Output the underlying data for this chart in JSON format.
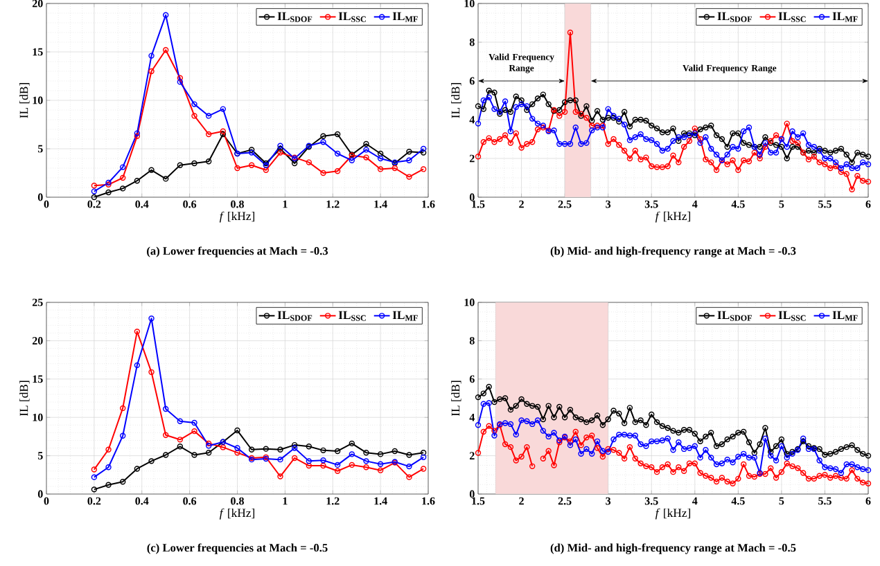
{
  "chart_data": [
    {
      "type": "line",
      "title": "(a)  Lower frequencies at Mach = -0.3",
      "xlabel": "*f* [kHz]",
      "ylabel": "IL [dB]",
      "xlim": [
        0,
        1.6
      ],
      "ylim": [
        0,
        20
      ],
      "xticks": [
        0,
        0.2,
        0.4,
        0.6,
        0.8,
        1,
        1.2,
        1.4,
        1.6
      ],
      "yticks": [
        0,
        5,
        10,
        15,
        20
      ],
      "grid": true,
      "legend": "top right",
      "marker": "circle",
      "line_style": "solid",
      "x": [
        0.2,
        0.26,
        0.32,
        0.38,
        0.44,
        0.5,
        0.56,
        0.62,
        0.68,
        0.74,
        0.8,
        0.86,
        0.92,
        0.98,
        1.04,
        1.1,
        1.16,
        1.22,
        1.28,
        1.34,
        1.4,
        1.46,
        1.52,
        1.58
      ],
      "series": [
        {
          "name": "IL$_{SDOF}$",
          "color": "#000000",
          "values": [
            0,
            0.5,
            0.9,
            1.7,
            2.8,
            1.9,
            3.3,
            3.5,
            3.7,
            6.5,
            4.5,
            4.9,
            3.5,
            5.0,
            3.5,
            5.2,
            6.3,
            6.5,
            4.4,
            5.5,
            4.5,
            3.5,
            4.7,
            4.6
          ]
        },
        {
          "name": "IL$_{SSC}$",
          "color": "#ff0000",
          "values": [
            1.2,
            1.3,
            2.0,
            6.3,
            13.0,
            15.2,
            12.3,
            8.4,
            6.5,
            6.8,
            3.0,
            3.3,
            2.8,
            4.6,
            4.1,
            3.6,
            2.5,
            2.7,
            4.3,
            4.1,
            2.9,
            3.0,
            2.1,
            2.9
          ]
        },
        {
          "name": "IL$_{MF}$",
          "color": "#0000ff",
          "values": [
            0.6,
            1.5,
            3.1,
            6.6,
            14.6,
            18.8,
            11.9,
            9.6,
            8.4,
            9.1,
            4.5,
            4.6,
            3.3,
            5.3,
            4.0,
            5.3,
            5.7,
            4.5,
            3.8,
            4.9,
            4.0,
            3.6,
            3.8,
            5.0
          ]
        }
      ]
    },
    {
      "type": "line",
      "title": "(b)  Mid- and high-frequency range at Mach = -0.3",
      "xlabel": "*f* [kHz]",
      "ylabel": "IL [dB]",
      "xlim": [
        1.5,
        6
      ],
      "ylim": [
        0,
        10
      ],
      "xticks": [
        1.5,
        2,
        2.5,
        3,
        3.5,
        4,
        4.5,
        5,
        5.5,
        6
      ],
      "yticks": [
        0,
        2,
        4,
        6,
        8,
        10
      ],
      "grid": true,
      "legend": "top right",
      "marker": "circle",
      "line_style": "solid",
      "bands": [
        {
          "axis": "x",
          "from": 2.5,
          "to": 2.8,
          "color": "#f9d9d9"
        }
      ],
      "annotations": [
        "Valid Frequency Range",
        "Valid Frequency Range"
      ],
      "x": [
        1.5,
        1.5625,
        1.625,
        1.6875,
        1.75,
        1.8125,
        1.875,
        1.9375,
        2,
        2.0625,
        2.125,
        2.1875,
        2.25,
        2.3125,
        2.375,
        2.4375,
        2.5,
        2.5625,
        2.625,
        2.6875,
        2.75,
        2.8125,
        2.875,
        2.9375,
        3,
        3.0625,
        3.125,
        3.1875,
        3.25,
        3.3125,
        3.375,
        3.4375,
        3.5,
        3.5625,
        3.625,
        3.6875,
        3.75,
        3.8125,
        3.875,
        3.9375,
        4,
        4.0625,
        4.125,
        4.1875,
        4.25,
        4.3125,
        4.375,
        4.4375,
        4.5,
        4.5625,
        4.625,
        4.6875,
        4.75,
        4.8125,
        4.875,
        4.9375,
        5,
        5.0625,
        5.125,
        5.1875,
        5.25,
        5.3125,
        5.375,
        5.4375,
        5.5,
        5.5625,
        5.625,
        5.6875,
        5.75,
        5.8125,
        5.875,
        5.9375,
        6
      ],
      "series": [
        {
          "name": "IL$_{SDOF}$",
          "color": "#000000",
          "values": [
            4.7,
            4.55,
            5.5,
            5.4,
            4.3,
            4.5,
            4.4,
            5.2,
            5.0,
            4.5,
            4.8,
            5.1,
            5.3,
            4.8,
            4.45,
            4.5,
            4.9,
            5.0,
            5.0,
            4.2,
            4.7,
            3.95,
            4.45,
            4.0,
            4.1,
            4.1,
            3.9,
            4.4,
            3.65,
            4.0,
            4.0,
            3.95,
            3.7,
            3.55,
            3.35,
            3.35,
            3.55,
            2.9,
            3.3,
            3.3,
            3.2,
            3.5,
            3.6,
            3.7,
            3.2,
            3.0,
            2.6,
            3.3,
            3.3,
            2.8,
            2.7,
            2.6,
            2.6,
            3.1,
            2.8,
            2.7,
            2.6,
            2.0,
            2.6,
            2.6,
            2.3,
            2.4,
            2.3,
            2.5,
            2.4,
            2.3,
            2.4,
            2.5,
            2.2,
            1.8,
            2.3,
            2.2,
            2.1
          ]
        },
        {
          "name": "IL$_{SSC}$",
          "color": "#ff0000",
          "values": [
            2.1,
            2.85,
            3.05,
            2.85,
            3.0,
            3.2,
            2.8,
            3.3,
            2.55,
            2.75,
            2.85,
            3.5,
            3.6,
            3.45,
            4.5,
            4.2,
            4.4,
            8.5,
            4.4,
            4.3,
            4.1,
            3.7,
            3.7,
            3.7,
            2.75,
            3.0,
            2.7,
            2.4,
            2.0,
            2.4,
            1.95,
            2.05,
            1.6,
            1.55,
            1.55,
            1.6,
            2.15,
            1.8,
            2.6,
            2.9,
            3.55,
            3.0,
            1.95,
            1.8,
            1.4,
            1.9,
            1.7,
            1.9,
            1.4,
            1.9,
            1.85,
            2.3,
            2.0,
            2.6,
            2.9,
            3.2,
            3.0,
            3.8,
            2.9,
            2.8,
            2.3,
            1.95,
            2.1,
            1.8,
            1.7,
            1.5,
            1.6,
            1.3,
            1.2,
            0.4,
            1.1,
            0.85,
            0.8
          ]
        },
        {
          "name": "IL$_{MF}$",
          "color": "#0000ff",
          "values": [
            3.8,
            5.0,
            5.15,
            4.55,
            4.4,
            4.95,
            3.4,
            4.65,
            4.8,
            4.7,
            4.05,
            3.8,
            3.7,
            3.4,
            3.45,
            2.75,
            2.75,
            2.75,
            3.6,
            2.75,
            2.8,
            3.45,
            3.6,
            3.6,
            4.55,
            4.2,
            4.05,
            3.75,
            2.95,
            3.1,
            3.25,
            3.0,
            2.95,
            2.75,
            2.4,
            2.5,
            2.9,
            3.1,
            3.1,
            3.2,
            3.3,
            2.8,
            3.1,
            2.5,
            2.2,
            1.9,
            2.2,
            2.6,
            2.5,
            3.4,
            3.6,
            2.6,
            2.2,
            2.8,
            2.3,
            2.3,
            3.0,
            2.6,
            3.4,
            3.1,
            3.3,
            2.7,
            2.6,
            2.4,
            2.0,
            2.0,
            1.8,
            1.5,
            1.7,
            1.5,
            1.5,
            1.8,
            1.7
          ]
        }
      ]
    },
    {
      "type": "line",
      "title": "(c)  Lower frequencies at Mach = -0.5",
      "xlabel": "*f* [kHz]",
      "ylabel": "IL [dB]",
      "xlim": [
        0,
        1.6
      ],
      "ylim": [
        0,
        25
      ],
      "xticks": [
        0,
        0.2,
        0.4,
        0.6,
        0.8,
        1,
        1.2,
        1.4,
        1.6
      ],
      "yticks": [
        0,
        5,
        10,
        15,
        20,
        25
      ],
      "grid": true,
      "legend": "top right",
      "marker": "circle",
      "line_style": "solid",
      "x": [
        0.2,
        0.26,
        0.32,
        0.38,
        0.44,
        0.5,
        0.56,
        0.62,
        0.68,
        0.74,
        0.8,
        0.86,
        0.92,
        0.98,
        1.04,
        1.1,
        1.16,
        1.22,
        1.28,
        1.34,
        1.4,
        1.46,
        1.52,
        1.58
      ],
      "series": [
        {
          "name": "IL$_{SDOF}$",
          "color": "#000000",
          "values": [
            0.6,
            1.2,
            1.6,
            3.3,
            4.3,
            5.1,
            6.2,
            5.1,
            5.4,
            6.8,
            8.3,
            5.8,
            5.9,
            5.8,
            6.4,
            6.2,
            5.7,
            5.6,
            6.6,
            5.4,
            5.2,
            5.6,
            5.1,
            5.4
          ]
        },
        {
          "name": "IL$_{SSC}$",
          "color": "#ff0000",
          "values": [
            3.2,
            5.8,
            11.2,
            21.2,
            15.9,
            7.7,
            7.1,
            8.2,
            6.6,
            6.1,
            5.4,
            4.7,
            4.8,
            2.3,
            4.7,
            3.7,
            3.7,
            3.0,
            3.8,
            3.5,
            3.1,
            4.1,
            2.2,
            3.3
          ]
        },
        {
          "name": "IL$_{MF}$",
          "color": "#0000ff",
          "values": [
            2.2,
            3.5,
            7.6,
            16.8,
            22.9,
            11.1,
            9.5,
            9.3,
            6.3,
            6.8,
            6.0,
            4.5,
            4.6,
            4.5,
            6.0,
            4.3,
            4.4,
            3.8,
            5.2,
            4.3,
            3.9,
            4.2,
            3.6,
            4.8
          ]
        }
      ]
    },
    {
      "type": "line",
      "title": "(d)  Mid- and high-frequency range at Mach = -0.5",
      "xlabel": "*f* [kHz]",
      "ylabel": "IL [dB]",
      "xlim": [
        1.5,
        6
      ],
      "ylim": [
        0,
        10
      ],
      "xticks": [
        1.5,
        2,
        2.5,
        3,
        3.5,
        4,
        4.5,
        5,
        5.5,
        6
      ],
      "yticks": [
        0,
        2,
        4,
        6,
        8,
        10
      ],
      "grid": true,
      "legend": "top right",
      "marker": "circle",
      "line_style": "solid",
      "bands": [
        {
          "axis": "x",
          "from": 1.7,
          "to": 3,
          "color": "#f9d9d9"
        }
      ],
      "x": [
        1.5,
        1.5625,
        1.625,
        1.6875,
        1.75,
        1.8125,
        1.875,
        1.9375,
        2,
        2.0625,
        2.125,
        2.1875,
        2.25,
        2.3125,
        2.375,
        2.4375,
        2.5,
        2.5625,
        2.625,
        2.6875,
        2.75,
        2.8125,
        2.875,
        2.9375,
        3,
        3.0625,
        3.125,
        3.1875,
        3.25,
        3.3125,
        3.375,
        3.4375,
        3.5,
        3.5625,
        3.625,
        3.6875,
        3.75,
        3.8125,
        3.875,
        3.9375,
        4,
        4.0625,
        4.125,
        4.1875,
        4.25,
        4.3125,
        4.375,
        4.4375,
        4.5,
        4.5625,
        4.625,
        4.6875,
        4.75,
        4.8125,
        4.875,
        4.9375,
        5,
        5.0625,
        5.125,
        5.1875,
        5.25,
        5.3125,
        5.375,
        5.4375,
        5.5,
        5.5625,
        5.625,
        5.6875,
        5.75,
        5.8125,
        5.875,
        5.9375,
        6
      ],
      "series": [
        {
          "name": "IL$_{SDOF}$",
          "color": "#000000",
          "values": [
            5.05,
            5.25,
            5.6,
            4.8,
            4.95,
            5.0,
            4.4,
            4.6,
            4.95,
            4.7,
            4.6,
            4.55,
            3.9,
            4.6,
            4.0,
            4.55,
            4.0,
            4.4,
            4.0,
            3.9,
            3.75,
            3.85,
            4.1,
            3.6,
            3.9,
            4.35,
            4.2,
            3.7,
            4.5,
            3.75,
            3.85,
            3.6,
            4.15,
            3.75,
            3.55,
            3.45,
            3.3,
            3.2,
            3.35,
            3.35,
            3.15,
            2.75,
            3.0,
            3.2,
            2.5,
            2.6,
            2.85,
            3.0,
            3.2,
            3.25,
            2.7,
            2.15,
            2.6,
            3.45,
            2.2,
            2.5,
            2.85,
            2.1,
            2.2,
            2.35,
            2.75,
            2.5,
            2.4,
            2.35,
            2.05,
            2.1,
            2.2,
            2.35,
            2.45,
            2.55,
            2.3,
            2.1,
            2.0
          ]
        },
        {
          "name": "IL$_{SSC}$",
          "color": "#ff0000",
          "values": [
            2.15,
            3.25,
            3.55,
            3.3,
            3.6,
            2.6,
            2.45,
            1.75,
            1.95,
            2.45,
            1.45,
            null,
            1.85,
            2.25,
            1.5,
            2.7,
            2.95,
            2.75,
            3.25,
            2.55,
            2.95,
            3.05,
            2.4,
            1.95,
            2.35,
            2.3,
            2.15,
            1.85,
            2.45,
            1.85,
            1.6,
            1.45,
            1.4,
            1.15,
            1.4,
            1.55,
            1.15,
            1.4,
            1.2,
            1.6,
            1.6,
            1.1,
            0.95,
            0.85,
            0.65,
            0.85,
            0.65,
            0.55,
            0.8,
            1.55,
            0.95,
            0.9,
            1.05,
            1.05,
            1.35,
            0.85,
            1.15,
            1.6,
            1.45,
            1.35,
            1.1,
            0.8,
            0.8,
            0.95,
            1.0,
            0.85,
            0.95,
            0.85,
            0.8,
            1.25,
            0.8,
            0.6,
            0.55
          ]
        },
        {
          "name": "IL$_{MF}$",
          "color": "#0000ff",
          "values": [
            3.6,
            4.7,
            4.75,
            3.05,
            3.65,
            3.7,
            3.65,
            3.1,
            3.85,
            3.8,
            3.65,
            3.85,
            3.3,
            3.0,
            3.2,
            2.8,
            3.0,
            2.55,
            2.85,
            2.1,
            2.35,
            2.1,
            2.75,
            2.25,
            2.2,
            2.85,
            3.1,
            3.1,
            3.05,
            3.05,
            2.6,
            2.5,
            2.75,
            2.75,
            2.8,
            2.9,
            2.3,
            2.7,
            2.35,
            2.4,
            2.5,
            1.9,
            2.3,
            1.9,
            1.55,
            1.6,
            1.8,
            1.65,
            1.95,
            2.1,
            1.9,
            1.9,
            1.1,
            2.9,
            2.0,
            1.75,
            2.5,
            1.9,
            2.1,
            2.3,
            2.9,
            2.35,
            2.35,
            1.75,
            1.4,
            1.35,
            1.3,
            1.1,
            1.55,
            1.55,
            1.4,
            1.3,
            1.25
          ]
        }
      ]
    }
  ]
}
